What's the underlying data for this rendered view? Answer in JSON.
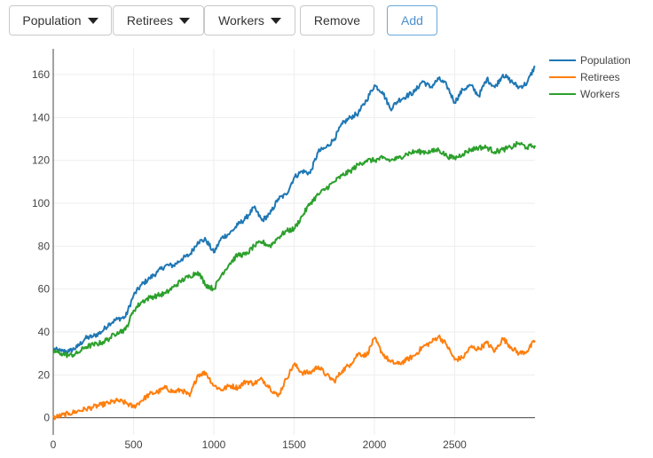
{
  "toolbar": {
    "population_label": "Population",
    "retirees_label": "Retirees",
    "workers_label": "Workers",
    "remove_label": "Remove",
    "add_label": "Add"
  },
  "icons": {
    "dropdown": "caret-down-icon"
  },
  "chart_data": {
    "type": "line",
    "title": "",
    "xlabel": "",
    "ylabel": "",
    "xlim": [
      0,
      3000
    ],
    "ylim": [
      -8,
      172
    ],
    "xticks": [
      0,
      500,
      1000,
      1500,
      2000,
      2500
    ],
    "yticks": [
      0,
      20,
      40,
      60,
      80,
      100,
      120,
      140,
      160
    ],
    "grid": true,
    "legend": "top-right",
    "series": [
      {
        "name": "Population",
        "color": "#1f77b4",
        "x": [
          0,
          50,
          100,
          150,
          200,
          250,
          300,
          350,
          400,
          450,
          500,
          550,
          600,
          650,
          700,
          750,
          800,
          850,
          900,
          950,
          1000,
          1050,
          1100,
          1150,
          1200,
          1250,
          1300,
          1350,
          1400,
          1450,
          1500,
          1550,
          1600,
          1650,
          1700,
          1750,
          1800,
          1850,
          1900,
          1950,
          2000,
          2050,
          2100,
          2150,
          2200,
          2250,
          2300,
          2350,
          2400,
          2450,
          2500,
          2550,
          2600,
          2650,
          2700,
          2750,
          2800,
          2850,
          2900,
          2950,
          3000
        ],
        "y": [
          32,
          31,
          31,
          33,
          37,
          38,
          40,
          44,
          46,
          47,
          57,
          62,
          65,
          68,
          71,
          71,
          74,
          76,
          82,
          83,
          77,
          84,
          86,
          90,
          93,
          98,
          92,
          95,
          102,
          104,
          112,
          115,
          114,
          124,
          126,
          130,
          137,
          140,
          142,
          148,
          155,
          152,
          144,
          148,
          150,
          152,
          157,
          154,
          158,
          155,
          147,
          153,
          155,
          150,
          158,
          154,
          160,
          157,
          154,
          156,
          164
        ]
      },
      {
        "name": "Retirees",
        "color": "#ff7f0e",
        "x": [
          0,
          50,
          100,
          150,
          200,
          250,
          300,
          350,
          400,
          450,
          500,
          550,
          600,
          650,
          700,
          750,
          800,
          850,
          900,
          950,
          1000,
          1050,
          1100,
          1150,
          1200,
          1250,
          1300,
          1350,
          1400,
          1450,
          1500,
          1550,
          1600,
          1650,
          1700,
          1750,
          1800,
          1850,
          1900,
          1950,
          2000,
          2050,
          2100,
          2150,
          2200,
          2250,
          2300,
          2350,
          2400,
          2450,
          2500,
          2550,
          2600,
          2650,
          2700,
          2750,
          2800,
          2850,
          2900,
          2950,
          3000
        ],
        "y": [
          0,
          1,
          2,
          3,
          4,
          5,
          6,
          7,
          8,
          7,
          5,
          8,
          11,
          12,
          14,
          12,
          13,
          10,
          20,
          21,
          15,
          13,
          15,
          14,
          17,
          16,
          18,
          14,
          10,
          18,
          25,
          21,
          21,
          24,
          20,
          17,
          22,
          25,
          30,
          29,
          37,
          30,
          26,
          25,
          27,
          29,
          33,
          35,
          38,
          34,
          27,
          28,
          33,
          32,
          35,
          31,
          37,
          33,
          30,
          31,
          36
        ]
      },
      {
        "name": "Workers",
        "color": "#2ca02c",
        "x": [
          0,
          50,
          100,
          150,
          200,
          250,
          300,
          350,
          400,
          450,
          500,
          550,
          600,
          650,
          700,
          750,
          800,
          850,
          900,
          950,
          1000,
          1050,
          1100,
          1150,
          1200,
          1250,
          1300,
          1350,
          1400,
          1450,
          1500,
          1550,
          1600,
          1650,
          1700,
          1750,
          1800,
          1850,
          1900,
          1950,
          2000,
          2050,
          2100,
          2150,
          2200,
          2250,
          2300,
          2350,
          2400,
          2450,
          2500,
          2550,
          2600,
          2650,
          2700,
          2750,
          2800,
          2850,
          2900,
          2950,
          3000
        ],
        "y": [
          31,
          30,
          29,
          30,
          33,
          34,
          35,
          37,
          40,
          41,
          50,
          54,
          56,
          57,
          58,
          61,
          64,
          66,
          68,
          62,
          60,
          67,
          72,
          76,
          76,
          80,
          82,
          80,
          84,
          87,
          88,
          94,
          100,
          104,
          107,
          110,
          113,
          115,
          118,
          120,
          120,
          121,
          120,
          121,
          123,
          124,
          124,
          124,
          125,
          122,
          121,
          123,
          125,
          126,
          126,
          124,
          125,
          126,
          128,
          126,
          127
        ]
      }
    ]
  }
}
